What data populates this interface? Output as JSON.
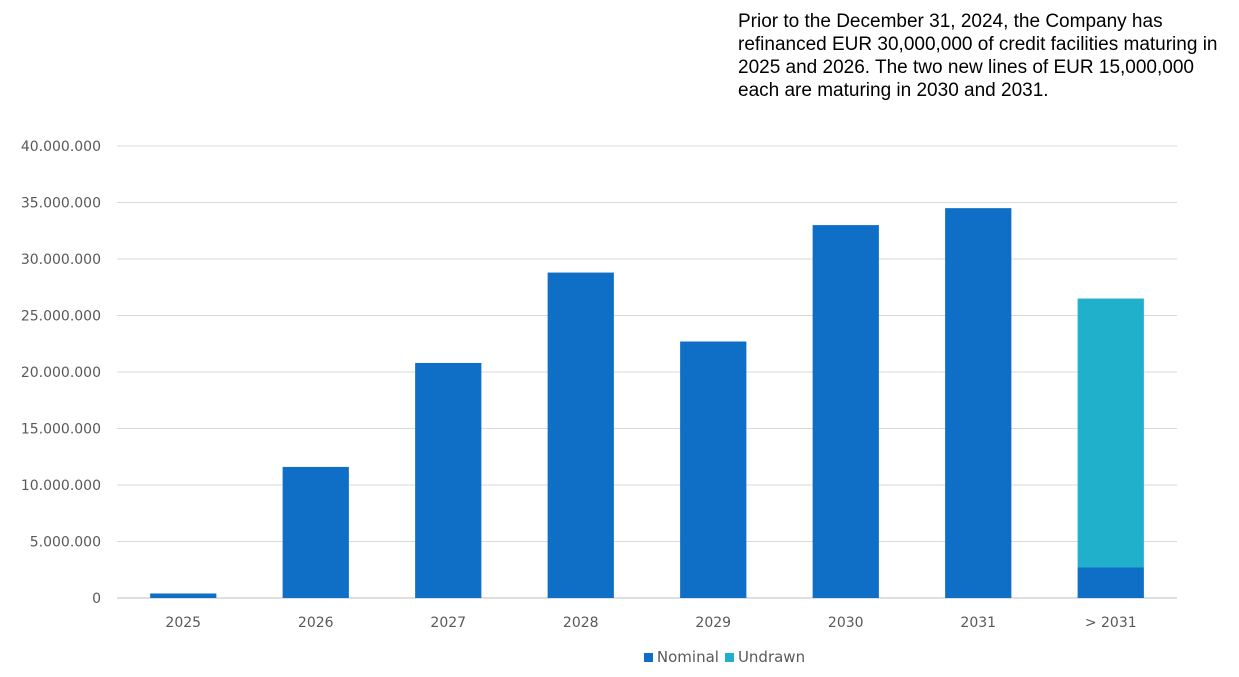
{
  "note": {
    "text": "Prior to the December 31, 2024, the Company has refinanced EUR 30,000,000 of credit facilities maturing in 2025 and 2026. The two new lines of EUR 15,000,000 each are maturing in 2030 and 2031."
  },
  "colors": {
    "nominal": "#0f6fc6",
    "undrawn": "#21b0cb",
    "grid": "#d9d9d9",
    "axis_text": "#595959"
  },
  "chart_data": {
    "type": "bar",
    "stacked": true,
    "categories": [
      "2025",
      "2026",
      "2027",
      "2028",
      "2029",
      "2030",
      "2031",
      "> 2031"
    ],
    "series": [
      {
        "name": "Nominal",
        "color": "#0f6fc6",
        "values": [
          400000,
          11600000,
          20800000,
          28800000,
          22700000,
          33000000,
          34500000,
          2700000
        ]
      },
      {
        "name": "Undrawn",
        "color": "#21b0cb",
        "values": [
          0,
          0,
          0,
          0,
          0,
          0,
          0,
          23800000
        ]
      }
    ],
    "y_ticks": [
      "0",
      "5.000.000",
      "10.000.000",
      "15.000.000",
      "20.000.000",
      "25.000.000",
      "30.000.000",
      "35.000.000",
      "40.000.000"
    ],
    "ylim": [
      0,
      40000000
    ],
    "y_step": 5000000,
    "grid": true,
    "legend": "bottom-center"
  }
}
